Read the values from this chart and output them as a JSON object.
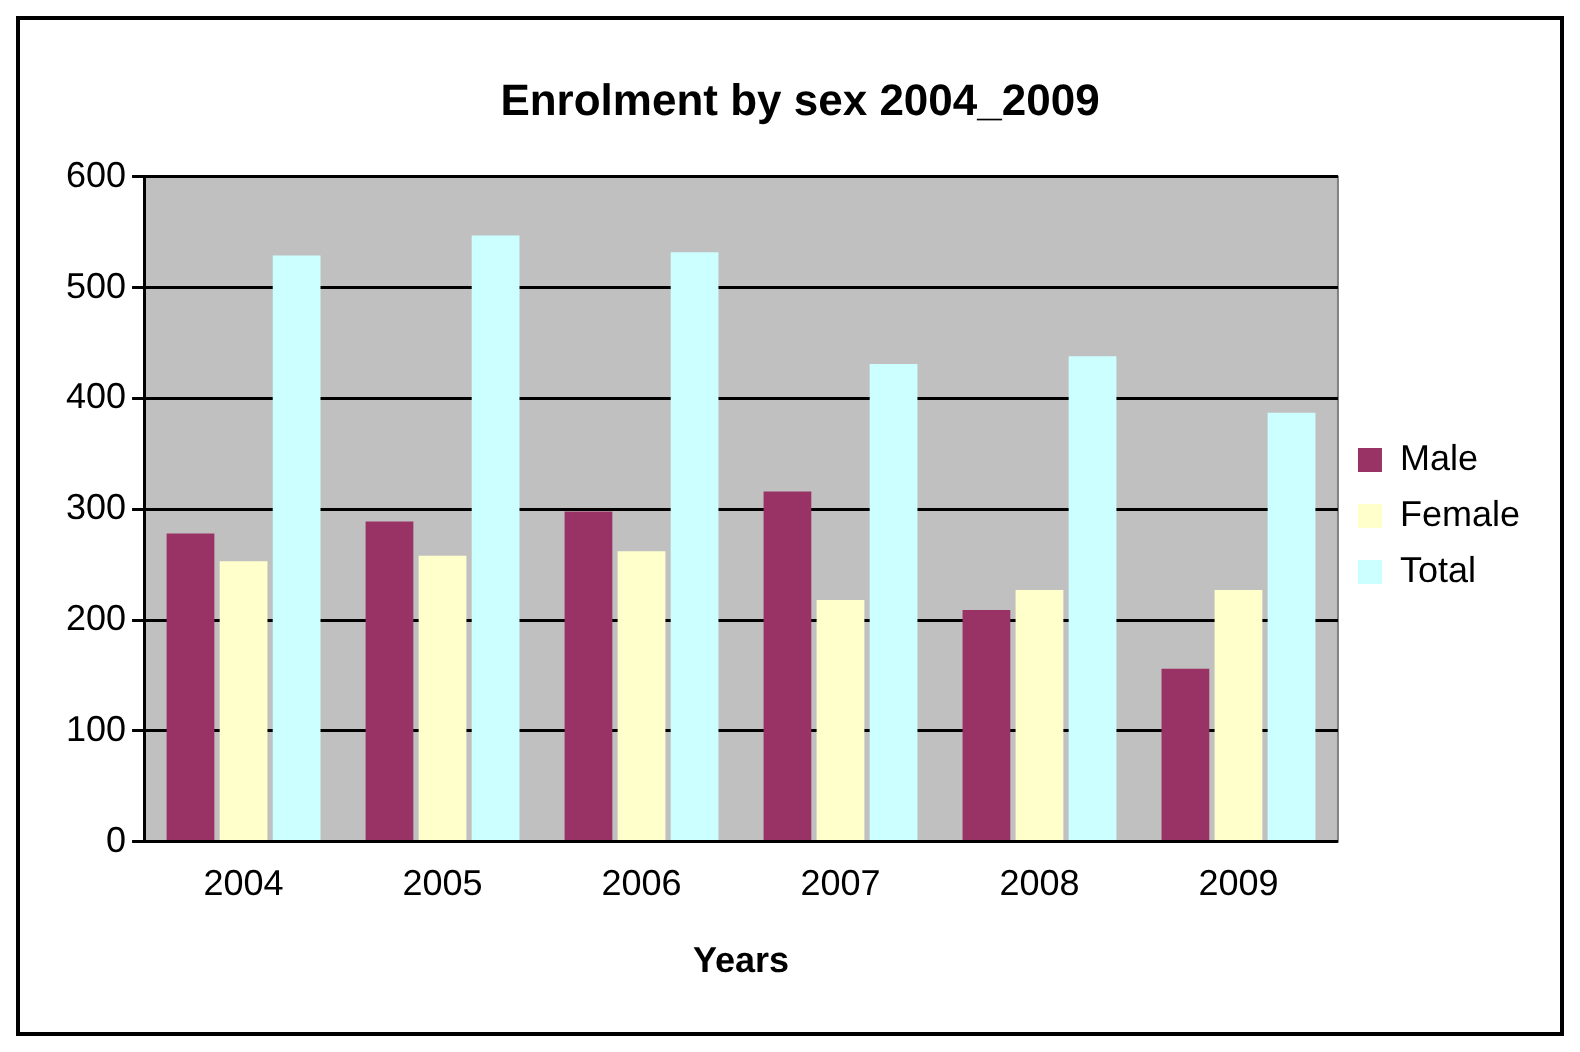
{
  "chart_data": {
    "type": "bar",
    "title": "Enrolment by sex 2004_2009",
    "xlabel": "Years",
    "categories": [
      "2004",
      "2005",
      "2006",
      "2007",
      "2008",
      "2009"
    ],
    "series": [
      {
        "name": "Male",
        "color": "#993366",
        "values": [
          278,
          289,
          298,
          316,
          209,
          156
        ]
      },
      {
        "name": "Female",
        "color": "#ffffcc",
        "values": [
          253,
          258,
          262,
          218,
          227,
          227
        ]
      },
      {
        "name": "Total",
        "color": "#ccffff",
        "values": [
          529,
          547,
          532,
          431,
          438,
          387
        ]
      }
    ],
    "ylim": [
      0,
      600
    ],
    "yticks": [
      0,
      100,
      200,
      300,
      400,
      500,
      600
    ],
    "grid": "y",
    "legend": "right"
  }
}
